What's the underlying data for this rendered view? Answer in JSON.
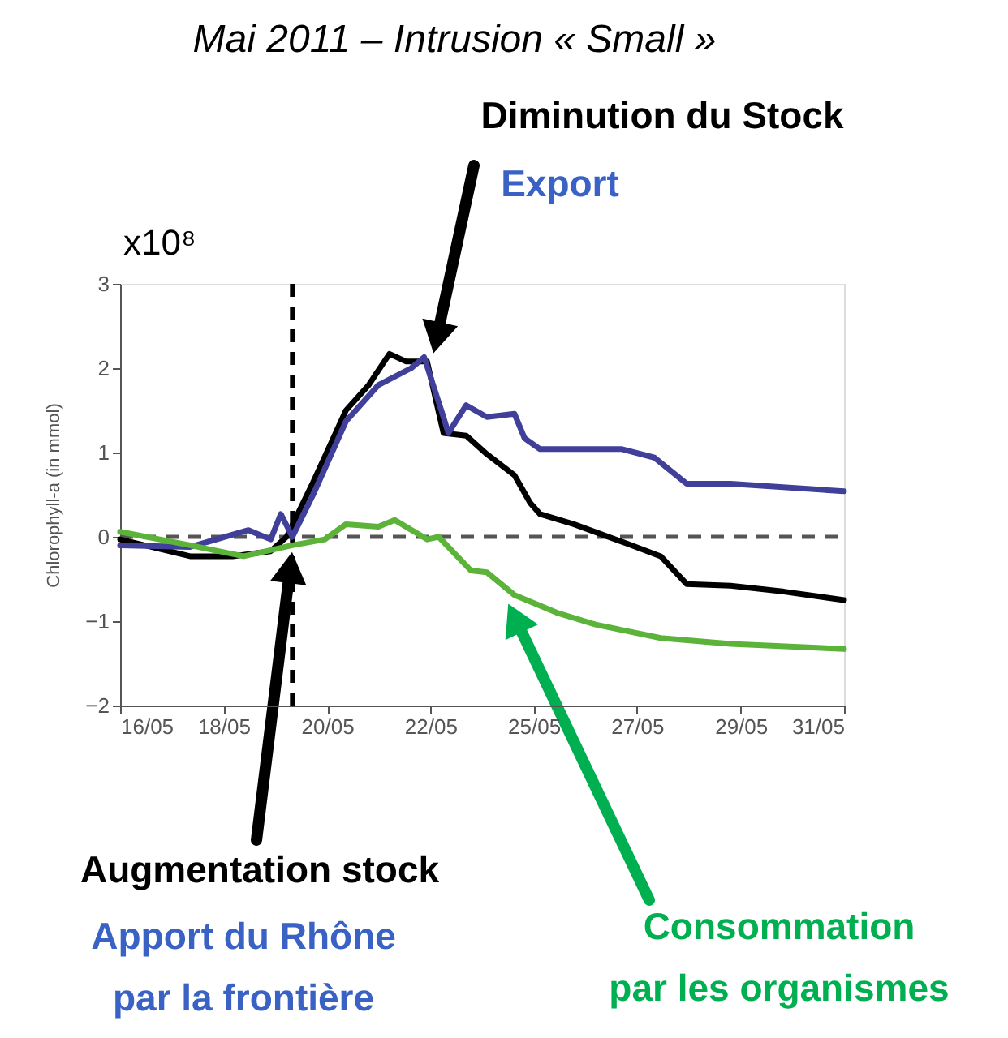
{
  "chart_data": {
    "type": "line",
    "title": "Mai 2011 – Intrusion « Small »",
    "ylabel": "Chlorophyll-a (in mmol)",
    "xlim": [
      "2011-05-16",
      "2011-05-31"
    ],
    "ylim": [
      -2,
      3
    ],
    "yticks": [
      -2,
      -1,
      0,
      1,
      2,
      3
    ],
    "xticks": [
      {
        "value": "2011-05-16",
        "label": "16/05"
      },
      {
        "value": "2011-05-18T03:26",
        "label": "18/05"
      },
      {
        "value": "2011-05-20T06:58",
        "label": "20/05"
      },
      {
        "value": "2011-05-22T10:19",
        "label": "22/05"
      },
      {
        "value": "2011-05-24T13:41",
        "label": "25/05"
      },
      {
        "value": "2011-05-26T17:02",
        "label": "27/05"
      },
      {
        "value": "2011-05-28T20:38",
        "label": "29/05"
      },
      {
        "value": "2011-05-31",
        "label": "31/05"
      }
    ],
    "grid": false,
    "marker": "none",
    "line_style": "solid",
    "series": [
      {
        "color": "#000000",
        "x": [
          "2011-05-16",
          "2011-05-17T10:48",
          "2011-05-18T07:55",
          "2011-05-19T02:53",
          "2011-05-19T10:48",
          "2011-05-20",
          "2011-05-20T16:19",
          "2011-05-21T03:36",
          "2011-05-21T13:55",
          "2011-05-21T22:05",
          "2011-05-22T08:38",
          "2011-05-22T16:48",
          "2011-05-23T04:05",
          "2011-05-23T14:24",
          "2011-05-24T04:05",
          "2011-05-24T12:00",
          "2011-05-24T16:48",
          "2011-05-25T09:36",
          "2011-05-26T12:00",
          "2011-05-27T04:48",
          "2011-05-27T17:46",
          "2011-05-28T15:36",
          "2011-05-29T18:14",
          "2011-05-31"
        ],
        "values": [
          -0.03,
          -0.23,
          -0.23,
          -0.17,
          0,
          0.65,
          1.5,
          1.8,
          2.17,
          2.08,
          2.08,
          1.23,
          1.2,
          0.98,
          0.73,
          0.4,
          0.27,
          0.15,
          -0.08,
          -0.23,
          -0.56,
          -0.58,
          -0.65,
          -0.75
        ]
      },
      {
        "color": "#40409a",
        "x": [
          "2011-05-16",
          "2011-05-17T10:48",
          "2011-05-18T15:50",
          "2011-05-19T02:53",
          "2011-05-19T07:55",
          "2011-05-19T13:41",
          "2011-05-20",
          "2011-05-20T16:19",
          "2011-05-21T08:24",
          "2011-05-22T00:43",
          "2011-05-22T07:12",
          "2011-05-22T16:48",
          "2011-05-22T19:12",
          "2011-05-23T04:05",
          "2011-05-23T14:24",
          "2011-05-24T04:05",
          "2011-05-24T09:07",
          "2011-05-24T16:48",
          "2011-05-26T09:36",
          "2011-05-27T01:41",
          "2011-05-27T17:46",
          "2011-05-28T15:36",
          "2011-05-31"
        ],
        "values": [
          -0.1,
          -0.12,
          0.08,
          -0.03,
          0.27,
          0,
          0.5,
          1.37,
          1.8,
          2.0,
          2.13,
          1.42,
          1.23,
          1.56,
          1.42,
          1.46,
          1.17,
          1.04,
          1.04,
          0.94,
          0.63,
          0.63,
          0.54
        ]
      },
      {
        "color": "#5cb33a",
        "x": [
          "2011-05-16",
          "2011-05-17T10:48",
          "2011-05-18T13:26",
          "2011-05-19T13:41",
          "2011-05-20T05:46",
          "2011-05-20T16:19",
          "2011-05-21T08:24",
          "2011-05-21T16:34",
          "2011-05-22T08:38",
          "2011-05-22T14:24",
          "2011-05-23T06:29",
          "2011-05-23T14:24",
          "2011-05-24T04:05",
          "2011-05-25T01:12",
          "2011-05-25T20:24",
          "2011-05-27T04:48",
          "2011-05-28T15:36",
          "2011-05-31"
        ],
        "values": [
          0.06,
          -0.1,
          -0.23,
          -0.1,
          -0.03,
          0.15,
          0.12,
          0.2,
          -0.03,
          0,
          -0.4,
          -0.42,
          -0.69,
          -0.9,
          -1.04,
          -1.2,
          -1.27,
          -1.33
        ]
      }
    ],
    "ref_lines": [
      {
        "axis": "x",
        "value": "2011-05-19T13:41",
        "color": "#000000",
        "line_style": "dashed"
      },
      {
        "axis": "y",
        "value": 0,
        "color": "#555555",
        "line_style": "dashed"
      }
    ],
    "annotations": [
      "x10⁸",
      "Diminution du Stock",
      "Export",
      "Augmentation stock",
      "Apport du Rhône",
      "par la frontière",
      "Consommation",
      "par les organismes"
    ]
  }
}
